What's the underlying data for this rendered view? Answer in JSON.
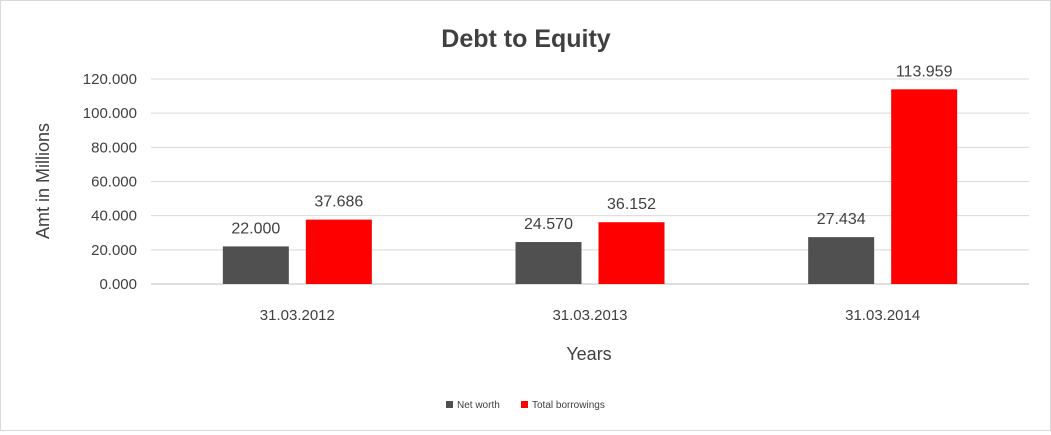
{
  "chart_data": {
    "type": "bar",
    "title": "Debt to Equity",
    "xlabel": "Years",
    "ylabel": "Amt in Millions",
    "categories": [
      "31.03.2012",
      "31.03.2013",
      "31.03.2014"
    ],
    "series": [
      {
        "name": "Net worth",
        "color": "#505050",
        "values": [
          22.0,
          24.57,
          27.434
        ],
        "labels": [
          "22.000",
          "24.570",
          "27.434"
        ]
      },
      {
        "name": "Total borrowings",
        "color": "#ff0000",
        "values": [
          37.686,
          36.152,
          113.959
        ],
        "labels": [
          "37.686",
          "36.152",
          "113.959"
        ]
      }
    ],
    "ylim": [
      0,
      120
    ],
    "yticks": [
      0,
      20,
      40,
      60,
      80,
      100,
      120
    ],
    "ytick_labels": [
      "0.000",
      "20.000",
      "40.000",
      "60.000",
      "80.000",
      "100.000",
      "120.000"
    ],
    "grid": true,
    "legend_position": "bottom"
  }
}
